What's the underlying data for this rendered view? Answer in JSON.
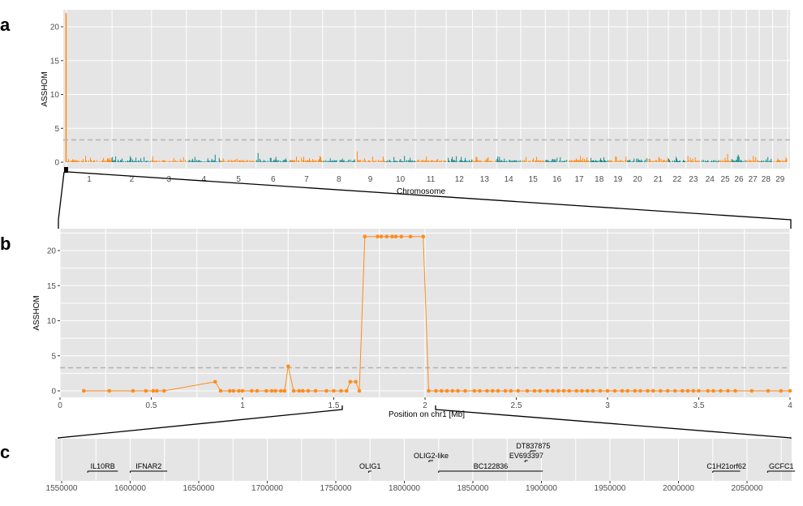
{
  "colors": {
    "orange": "#ff8c1a",
    "teal": "#1a8a8a",
    "panel": "#e5e5e5",
    "threshold": "#b3b3b3"
  },
  "panel_letters": {
    "a": "a",
    "b": "b",
    "c": "c"
  },
  "chart_data": [
    {
      "panel": "a",
      "type": "bar",
      "ylabel": "ASSHOM",
      "xlabel": "Chromosome",
      "ylim": [
        0,
        23
      ],
      "yticks": [
        0,
        5,
        10,
        15,
        20
      ],
      "threshold": 3.3,
      "grid": true,
      "chromosomes": [
        "1",
        "2",
        "3",
        "4",
        "5",
        "6",
        "7",
        "8",
        "9",
        "10",
        "11",
        "12",
        "13",
        "14",
        "15",
        "16",
        "17",
        "18",
        "19",
        "20",
        "21",
        "22",
        "23",
        "24",
        "25",
        "26",
        "27",
        "28",
        "29"
      ],
      "chromosome_relative_lengths": [
        158,
        137,
        121,
        121,
        121,
        119,
        112,
        113,
        105,
        104,
        107,
        91,
        84,
        84,
        85,
        81,
        73,
        66,
        64,
        72,
        71,
        61,
        52,
        63,
        43,
        52,
        45,
        46,
        52
      ],
      "peak": {
        "chromosome": "1",
        "value": 22
      },
      "series": [
        {
          "color": "orange",
          "chromosomes": [
            "1",
            "3",
            "5",
            "7",
            "9",
            "11",
            "13",
            "15",
            "17",
            "19",
            "21",
            "23",
            "25",
            "27",
            "29"
          ]
        },
        {
          "color": "teal",
          "chromosomes": [
            "2",
            "4",
            "6",
            "8",
            "10",
            "12",
            "14",
            "16",
            "18",
            "20",
            "22",
            "24",
            "26",
            "28"
          ]
        }
      ]
    },
    {
      "panel": "b",
      "type": "line",
      "ylabel": "ASSHOM",
      "xlabel": "Position on chr1 [Mb]",
      "xlim": [
        0,
        4
      ],
      "ylim": [
        -1,
        23
      ],
      "xticks": [
        "0",
        "0.5",
        "1",
        "1.5",
        "2",
        "2.5",
        "3",
        "3.5",
        "4"
      ],
      "yticks": [
        0,
        5,
        10,
        15,
        20
      ],
      "threshold": 3.3,
      "grid": true,
      "series": [
        {
          "color": "orange",
          "x": [
            0.13,
            0.27,
            0.4,
            0.47,
            0.51,
            0.53,
            0.57,
            0.85,
            0.88,
            0.93,
            0.95,
            0.98,
            1.0,
            1.05,
            1.08,
            1.13,
            1.16,
            1.18,
            1.21,
            1.23,
            1.25,
            1.28,
            1.31,
            1.33,
            1.36,
            1.4,
            1.46,
            1.5,
            1.54,
            1.57,
            1.59,
            1.62,
            1.64,
            1.67,
            1.74,
            1.76,
            1.79,
            1.82,
            1.84,
            1.87,
            1.92,
            1.99,
            2.02,
            2.06,
            2.09,
            2.12,
            2.15,
            2.18,
            2.22,
            2.27,
            2.3,
            2.34,
            2.37,
            2.4,
            2.44,
            2.47,
            2.51,
            2.56,
            2.6,
            2.63,
            2.67,
            2.7,
            2.73,
            2.76,
            2.79,
            2.83,
            2.86,
            2.89,
            2.92,
            2.96,
            3.0,
            3.04,
            3.08,
            3.11,
            3.15,
            3.18,
            3.22,
            3.25,
            3.29,
            3.33,
            3.37,
            3.41,
            3.44,
            3.47,
            3.5,
            3.55,
            3.58,
            3.62,
            3.66,
            3.7,
            3.79,
            3.88,
            3.95,
            4.0
          ],
          "y": [
            0,
            0,
            0,
            0,
            0,
            0,
            0,
            1.3,
            0,
            0,
            0,
            0,
            0,
            0,
            0,
            0,
            0,
            0,
            0,
            0,
            3.5,
            0,
            0,
            0,
            0,
            0,
            0,
            0,
            0,
            0,
            1.3,
            1.3,
            0,
            22,
            22,
            22,
            22,
            22,
            22,
            22,
            22,
            22,
            0,
            0,
            0,
            0,
            0,
            0,
            0,
            0,
            0,
            0,
            0,
            0,
            0,
            0,
            0,
            0,
            0,
            0,
            0,
            0,
            0,
            0,
            0,
            0,
            0,
            0,
            0,
            0,
            0,
            0,
            0,
            0,
            0,
            0,
            0,
            0,
            0,
            0,
            0,
            0,
            0,
            0,
            0,
            0,
            0,
            0,
            0,
            0,
            0,
            0,
            0,
            0
          ]
        }
      ]
    },
    {
      "panel": "c",
      "type": "gene-track",
      "xlim": [
        1545000,
        2090000
      ],
      "xticks": [
        "1550000",
        "1600000",
        "1650000",
        "1700000",
        "1750000",
        "1800000",
        "1850000",
        "1900000",
        "1950000",
        "2000000",
        "2050000"
      ],
      "genes": [
        {
          "name": "IL10RB",
          "start": 1569000,
          "end": 1591000,
          "row": 0
        },
        {
          "name": "IFNAR2",
          "start": 1600000,
          "end": 1627000,
          "row": 0
        },
        {
          "name": "OLIG1",
          "start": 1774000,
          "end": 1776000,
          "row": 0
        },
        {
          "name": "OLIG2-like",
          "start": 1818000,
          "end": 1821000,
          "row": 1
        },
        {
          "name": "BC122836",
          "start": 1825000,
          "end": 1901000,
          "row": 0
        },
        {
          "name": "EV693397",
          "start": 1888000,
          "end": 1890000,
          "row": 1
        },
        {
          "name": "DT837875",
          "start": 1892000,
          "end": 1896000,
          "row": 2
        },
        {
          "name": "C1H21orf62",
          "start": 2025000,
          "end": 2045000,
          "row": 0
        },
        {
          "name": "GCFC1",
          "start": 2065000,
          "end": 2085000,
          "row": 0
        }
      ]
    }
  ]
}
